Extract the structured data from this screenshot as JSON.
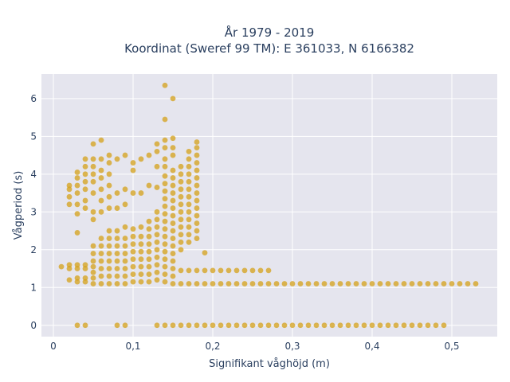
{
  "chart_data": {
    "type": "scatter",
    "title_line1": "År 1979 - 2019",
    "title_line2": "Koordinat (Sweref 99 TM): E 361033, N 6166382",
    "xlabel": "Signifikant våghöjd (m)",
    "ylabel": "Vågperiod (s)",
    "xlim": [
      -0.015,
      0.557
    ],
    "ylim": [
      -0.3,
      6.65
    ],
    "x_ticks": [
      0,
      0.1,
      0.2,
      0.3,
      0.4,
      0.5
    ],
    "x_tick_labels": [
      "0",
      "0,1",
      "0,2",
      "0,3",
      "0,4",
      "0,5"
    ],
    "y_ticks": [
      0,
      1,
      2,
      3,
      4,
      5,
      6
    ],
    "y_tick_labels": [
      "0",
      "1",
      "2",
      "3",
      "4",
      "5",
      "6"
    ],
    "grid": true,
    "colors": {
      "marker": "#d4a018",
      "plot_bg": "#e5e5ee",
      "grid": "#ffffff",
      "text": "#2a3f5f"
    },
    "series": [
      {
        "points": [
          [
            0.01,
            1.55
          ],
          [
            0.02,
            1.2
          ],
          [
            0.02,
            1.5
          ],
          [
            0.02,
            1.6
          ],
          [
            0.02,
            3.2
          ],
          [
            0.02,
            3.4
          ],
          [
            0.02,
            3.6
          ],
          [
            0.02,
            3.7
          ],
          [
            0.03,
            1.15
          ],
          [
            0.03,
            1.25
          ],
          [
            0.03,
            1.5
          ],
          [
            0.03,
            1.6
          ],
          [
            0.03,
            2.45
          ],
          [
            0.03,
            2.95
          ],
          [
            0.03,
            3.2
          ],
          [
            0.03,
            3.5
          ],
          [
            0.03,
            3.7
          ],
          [
            0.03,
            3.9
          ],
          [
            0.03,
            4.05
          ],
          [
            0.03,
            0
          ],
          [
            0.04,
            1.15
          ],
          [
            0.04,
            1.25
          ],
          [
            0.04,
            1.5
          ],
          [
            0.04,
            1.6
          ],
          [
            0.04,
            3.1
          ],
          [
            0.04,
            3.3
          ],
          [
            0.04,
            3.6
          ],
          [
            0.04,
            3.8
          ],
          [
            0.04,
            4.0
          ],
          [
            0.04,
            4.2
          ],
          [
            0.04,
            4.4
          ],
          [
            0.04,
            0
          ],
          [
            0.05,
            1.1
          ],
          [
            0.05,
            1.25
          ],
          [
            0.05,
            1.4
          ],
          [
            0.05,
            1.55
          ],
          [
            0.05,
            1.7
          ],
          [
            0.05,
            1.9
          ],
          [
            0.05,
            2.1
          ],
          [
            0.05,
            2.8
          ],
          [
            0.05,
            3.0
          ],
          [
            0.05,
            3.5
          ],
          [
            0.05,
            3.8
          ],
          [
            0.05,
            4.0
          ],
          [
            0.05,
            4.2
          ],
          [
            0.05,
            4.4
          ],
          [
            0.05,
            4.8
          ],
          [
            0.06,
            1.1
          ],
          [
            0.06,
            1.3
          ],
          [
            0.06,
            1.5
          ],
          [
            0.06,
            1.7
          ],
          [
            0.06,
            1.9
          ],
          [
            0.06,
            2.1
          ],
          [
            0.06,
            2.3
          ],
          [
            0.06,
            3.0
          ],
          [
            0.06,
            3.3
          ],
          [
            0.06,
            3.6
          ],
          [
            0.06,
            3.9
          ],
          [
            0.06,
            4.1
          ],
          [
            0.06,
            4.4
          ],
          [
            0.06,
            4.9
          ],
          [
            0.07,
            1.1
          ],
          [
            0.07,
            1.3
          ],
          [
            0.07,
            1.5
          ],
          [
            0.07,
            1.7
          ],
          [
            0.07,
            1.9
          ],
          [
            0.07,
            2.1
          ],
          [
            0.07,
            2.3
          ],
          [
            0.07,
            2.5
          ],
          [
            0.07,
            3.1
          ],
          [
            0.07,
            3.4
          ],
          [
            0.07,
            3.7
          ],
          [
            0.07,
            4.0
          ],
          [
            0.07,
            4.3
          ],
          [
            0.07,
            4.5
          ],
          [
            0.08,
            1.1
          ],
          [
            0.08,
            1.3
          ],
          [
            0.08,
            1.5
          ],
          [
            0.08,
            1.7
          ],
          [
            0.08,
            1.9
          ],
          [
            0.08,
            2.1
          ],
          [
            0.08,
            2.3
          ],
          [
            0.08,
            2.5
          ],
          [
            0.08,
            3.1
          ],
          [
            0.08,
            3.5
          ],
          [
            0.08,
            4.4
          ],
          [
            0.08,
            0
          ],
          [
            0.09,
            1.1
          ],
          [
            0.09,
            1.3
          ],
          [
            0.09,
            1.5
          ],
          [
            0.09,
            1.7
          ],
          [
            0.09,
            1.9
          ],
          [
            0.09,
            2.1
          ],
          [
            0.09,
            2.3
          ],
          [
            0.09,
            2.6
          ],
          [
            0.09,
            3.2
          ],
          [
            0.09,
            3.6
          ],
          [
            0.09,
            4.5
          ],
          [
            0.09,
            0
          ],
          [
            0.1,
            1.15
          ],
          [
            0.1,
            1.35
          ],
          [
            0.1,
            1.55
          ],
          [
            0.1,
            1.75
          ],
          [
            0.1,
            1.95
          ],
          [
            0.1,
            2.15
          ],
          [
            0.1,
            2.35
          ],
          [
            0.1,
            2.55
          ],
          [
            0.1,
            3.5
          ],
          [
            0.1,
            4.1
          ],
          [
            0.1,
            4.3
          ],
          [
            0.11,
            1.15
          ],
          [
            0.11,
            1.35
          ],
          [
            0.11,
            1.55
          ],
          [
            0.11,
            1.75
          ],
          [
            0.11,
            1.95
          ],
          [
            0.11,
            2.15
          ],
          [
            0.11,
            2.35
          ],
          [
            0.11,
            2.6
          ],
          [
            0.11,
            3.5
          ],
          [
            0.11,
            4.4
          ],
          [
            0.12,
            1.15
          ],
          [
            0.12,
            1.35
          ],
          [
            0.12,
            1.55
          ],
          [
            0.12,
            1.75
          ],
          [
            0.12,
            1.95
          ],
          [
            0.12,
            2.15
          ],
          [
            0.12,
            2.35
          ],
          [
            0.12,
            2.55
          ],
          [
            0.12,
            2.75
          ],
          [
            0.12,
            3.7
          ],
          [
            0.12,
            4.5
          ],
          [
            0.13,
            1.2
          ],
          [
            0.13,
            1.4
          ],
          [
            0.13,
            1.6
          ],
          [
            0.13,
            1.8
          ],
          [
            0.13,
            2.0
          ],
          [
            0.13,
            2.2
          ],
          [
            0.13,
            2.4
          ],
          [
            0.13,
            2.6
          ],
          [
            0.13,
            2.8
          ],
          [
            0.13,
            3.0
          ],
          [
            0.13,
            3.65
          ],
          [
            0.13,
            4.2
          ],
          [
            0.13,
            4.6
          ],
          [
            0.13,
            4.8
          ],
          [
            0.13,
            0
          ],
          [
            0.14,
            1.15
          ],
          [
            0.14,
            1.35
          ],
          [
            0.14,
            1.55
          ],
          [
            0.14,
            1.75
          ],
          [
            0.14,
            1.95
          ],
          [
            0.14,
            2.15
          ],
          [
            0.14,
            2.35
          ],
          [
            0.14,
            2.55
          ],
          [
            0.14,
            2.75
          ],
          [
            0.14,
            2.95
          ],
          [
            0.14,
            3.15
          ],
          [
            0.14,
            3.35
          ],
          [
            0.14,
            3.55
          ],
          [
            0.14,
            3.75
          ],
          [
            0.14,
            3.95
          ],
          [
            0.14,
            4.2
          ],
          [
            0.14,
            4.4
          ],
          [
            0.14,
            4.7
          ],
          [
            0.14,
            4.9
          ],
          [
            0.14,
            5.45
          ],
          [
            0.14,
            6.35
          ],
          [
            0.14,
            0
          ],
          [
            0.15,
            1.1
          ],
          [
            0.15,
            1.3
          ],
          [
            0.15,
            1.5
          ],
          [
            0.15,
            1.7
          ],
          [
            0.15,
            1.9
          ],
          [
            0.15,
            2.1
          ],
          [
            0.15,
            2.3
          ],
          [
            0.15,
            2.5
          ],
          [
            0.15,
            2.7
          ],
          [
            0.15,
            2.9
          ],
          [
            0.15,
            3.1
          ],
          [
            0.15,
            3.3
          ],
          [
            0.15,
            3.5
          ],
          [
            0.15,
            3.7
          ],
          [
            0.15,
            3.9
          ],
          [
            0.15,
            4.1
          ],
          [
            0.15,
            4.5
          ],
          [
            0.15,
            4.7
          ],
          [
            0.15,
            4.95
          ],
          [
            0.15,
            6.0
          ],
          [
            0.15,
            0
          ],
          [
            0.16,
            1.1
          ],
          [
            0.16,
            1.45
          ],
          [
            0.16,
            2.0
          ],
          [
            0.16,
            2.2
          ],
          [
            0.16,
            2.4
          ],
          [
            0.16,
            2.6
          ],
          [
            0.16,
            2.8
          ],
          [
            0.16,
            3.0
          ],
          [
            0.16,
            3.2
          ],
          [
            0.16,
            3.4
          ],
          [
            0.16,
            3.6
          ],
          [
            0.16,
            3.8
          ],
          [
            0.16,
            4.0
          ],
          [
            0.16,
            4.2
          ],
          [
            0.16,
            0
          ],
          [
            0.17,
            1.1
          ],
          [
            0.17,
            1.45
          ],
          [
            0.17,
            2.2
          ],
          [
            0.17,
            2.4
          ],
          [
            0.17,
            2.6
          ],
          [
            0.17,
            2.8
          ],
          [
            0.17,
            3.0
          ],
          [
            0.17,
            3.2
          ],
          [
            0.17,
            3.4
          ],
          [
            0.17,
            3.6
          ],
          [
            0.17,
            3.8
          ],
          [
            0.17,
            4.0
          ],
          [
            0.17,
            4.2
          ],
          [
            0.17,
            4.4
          ],
          [
            0.17,
            4.6
          ],
          [
            0.17,
            0
          ],
          [
            0.18,
            1.1
          ],
          [
            0.18,
            1.45
          ],
          [
            0.18,
            2.3
          ],
          [
            0.18,
            2.5
          ],
          [
            0.18,
            2.7
          ],
          [
            0.18,
            2.9
          ],
          [
            0.18,
            3.1
          ],
          [
            0.18,
            3.3
          ],
          [
            0.18,
            3.5
          ],
          [
            0.18,
            3.7
          ],
          [
            0.18,
            3.9
          ],
          [
            0.18,
            4.1
          ],
          [
            0.18,
            4.3
          ],
          [
            0.18,
            4.5
          ],
          [
            0.18,
            4.7
          ],
          [
            0.18,
            4.85
          ],
          [
            0.18,
            0
          ],
          [
            0.19,
            1.1
          ],
          [
            0.19,
            1.45
          ],
          [
            0.19,
            1.92
          ],
          [
            0.19,
            0
          ],
          [
            0.2,
            1.1
          ],
          [
            0.2,
            1.45
          ],
          [
            0.2,
            0
          ],
          [
            0.21,
            1.1
          ],
          [
            0.21,
            1.45
          ],
          [
            0.21,
            0
          ],
          [
            0.22,
            1.1
          ],
          [
            0.22,
            1.45
          ],
          [
            0.22,
            0
          ],
          [
            0.23,
            1.1
          ],
          [
            0.23,
            1.45
          ],
          [
            0.23,
            0
          ],
          [
            0.24,
            1.1
          ],
          [
            0.24,
            1.45
          ],
          [
            0.24,
            0
          ],
          [
            0.25,
            1.1
          ],
          [
            0.25,
            1.45
          ],
          [
            0.25,
            0
          ],
          [
            0.26,
            1.1
          ],
          [
            0.26,
            1.45
          ],
          [
            0.26,
            0
          ],
          [
            0.27,
            1.1
          ],
          [
            0.27,
            1.45
          ],
          [
            0.27,
            0
          ],
          [
            0.28,
            1.1
          ],
          [
            0.28,
            0
          ],
          [
            0.29,
            1.1
          ],
          [
            0.29,
            0
          ],
          [
            0.3,
            1.1
          ],
          [
            0.3,
            0
          ],
          [
            0.31,
            1.1
          ],
          [
            0.31,
            0
          ],
          [
            0.32,
            1.1
          ],
          [
            0.32,
            0
          ],
          [
            0.33,
            1.1
          ],
          [
            0.33,
            0
          ],
          [
            0.34,
            1.1
          ],
          [
            0.34,
            0
          ],
          [
            0.35,
            1.1
          ],
          [
            0.35,
            0
          ],
          [
            0.36,
            1.1
          ],
          [
            0.36,
            0
          ],
          [
            0.37,
            1.1
          ],
          [
            0.37,
            0
          ],
          [
            0.38,
            1.1
          ],
          [
            0.38,
            0
          ],
          [
            0.39,
            1.1
          ],
          [
            0.39,
            0
          ],
          [
            0.4,
            1.1
          ],
          [
            0.4,
            0
          ],
          [
            0.41,
            1.1
          ],
          [
            0.41,
            0
          ],
          [
            0.42,
            1.1
          ],
          [
            0.42,
            0
          ],
          [
            0.43,
            1.1
          ],
          [
            0.43,
            0
          ],
          [
            0.44,
            1.1
          ],
          [
            0.44,
            0
          ],
          [
            0.45,
            1.1
          ],
          [
            0.45,
            0
          ],
          [
            0.46,
            1.1
          ],
          [
            0.46,
            0
          ],
          [
            0.47,
            1.1
          ],
          [
            0.47,
            0
          ],
          [
            0.48,
            1.1
          ],
          [
            0.48,
            0
          ],
          [
            0.49,
            1.1
          ],
          [
            0.49,
            0
          ],
          [
            0.5,
            1.1
          ],
          [
            0.51,
            1.1
          ],
          [
            0.52,
            1.1
          ],
          [
            0.53,
            1.1
          ]
        ]
      }
    ]
  }
}
